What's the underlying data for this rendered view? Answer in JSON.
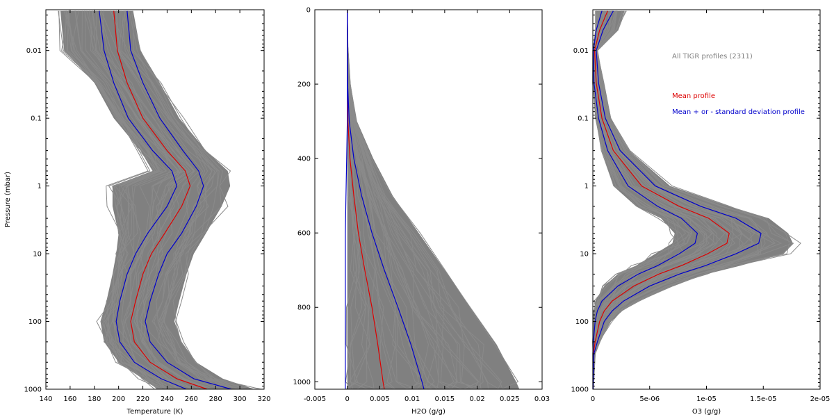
{
  "chart_data": [
    {
      "type": "line",
      "panel": "temperature",
      "xlabel": "Temperature (K)",
      "ylabel": "Pressure (mbar)",
      "xlim": [
        140,
        320
      ],
      "ylim": [
        1000,
        0.0025
      ],
      "yscale": "log",
      "x_ticks": [
        140,
        160,
        180,
        200,
        220,
        240,
        260,
        280,
        300,
        320
      ],
      "x_tick_labels": [
        "140",
        "160",
        "180",
        "200",
        "220",
        "240",
        "260",
        "280",
        "300",
        "320"
      ],
      "y_ticks": [
        0.01,
        0.1,
        1,
        10,
        100,
        1000
      ],
      "y_tick_labels": [
        "0.01",
        "0.1",
        "1",
        "10",
        "100",
        "1000"
      ],
      "pressure": [
        0.0026,
        0.01,
        0.03,
        0.1,
        0.3,
        0.6,
        1,
        2,
        5,
        10,
        20,
        50,
        100,
        200,
        400,
        700,
        1000
      ],
      "series": [
        {
          "role": "mean",
          "color": "#dd0000",
          "values": [
            196,
            199,
            207,
            220,
            240,
            255,
            259,
            252,
            238,
            227,
            220,
            214,
            210,
            213,
            226,
            248,
            273
          ]
        },
        {
          "role": "mean_plus_std",
          "color": "#0000cc",
          "values": [
            207,
            210,
            220,
            234,
            253,
            266,
            270,
            264,
            252,
            240,
            233,
            226,
            222,
            226,
            240,
            262,
            293
          ]
        },
        {
          "role": "mean_minus_std",
          "color": "#0000cc",
          "values": [
            184,
            188,
            196,
            208,
            228,
            244,
            248,
            240,
            224,
            214,
            207,
            201,
            198,
            201,
            213,
            235,
            256
          ]
        }
      ],
      "envelope": {
        "role": "all_profiles",
        "color": "#808080",
        "low": [
          152,
          155,
          180,
          196,
          218,
          228,
          195,
          195,
          200,
          198,
          195,
          190,
          185,
          188,
          200,
          220,
          232
        ],
        "high": [
          212,
          218,
          234,
          250,
          272,
          290,
          292,
          285,
          272,
          262,
          256,
          250,
          246,
          252,
          264,
          286,
          312
        ]
      }
    },
    {
      "type": "line",
      "panel": "h2o",
      "xlabel": "H2O (g/g)",
      "ylabel": "",
      "xlim": [
        -0.005,
        0.03
      ],
      "ylim": [
        1020,
        0
      ],
      "yscale": "linear",
      "x_ticks": [
        -0.005,
        0,
        0.005,
        0.01,
        0.015,
        0.02,
        0.025,
        0.03
      ],
      "x_tick_labels": [
        "-0.005",
        "0",
        "0.005",
        "0.01",
        "0.015",
        "0.02",
        "0.025",
        "0.03"
      ],
      "y_ticks": [
        0,
        200,
        400,
        600,
        800,
        1000
      ],
      "y_tick_labels": [
        "0",
        "200",
        "400",
        "600",
        "800",
        "1000"
      ],
      "pressure": [
        0,
        100,
        200,
        300,
        400,
        500,
        600,
        700,
        800,
        900,
        1000,
        1020
      ],
      "series": [
        {
          "role": "mean",
          "color": "#dd0000",
          "values": [
            0,
            0,
            2e-05,
            0.0001,
            0.0004,
            0.001,
            0.0017,
            0.0027,
            0.0038,
            0.0047,
            0.0055,
            0.0057
          ]
        },
        {
          "role": "mean_plus_std",
          "color": "#0000cc",
          "values": [
            0,
            0,
            5e-05,
            0.0003,
            0.001,
            0.0022,
            0.0038,
            0.0057,
            0.0078,
            0.0098,
            0.0115,
            0.0118
          ]
        },
        {
          "role": "mean_minus_std",
          "color": "#0000cc",
          "values": [
            0,
            0,
            0,
            0,
            -0.0001,
            -0.0002,
            -0.0003,
            -0.0003,
            -0.0003,
            -0.0003,
            -0.0003,
            -0.0003
          ]
        }
      ],
      "envelope": {
        "role": "all_profiles",
        "color": "#808080",
        "low": [
          0,
          0,
          0,
          0,
          0,
          0,
          0,
          0,
          0,
          0,
          0,
          0
        ],
        "high": [
          0,
          0.0001,
          0.0005,
          0.0015,
          0.004,
          0.007,
          0.011,
          0.015,
          0.019,
          0.023,
          0.026,
          0.0265
        ]
      }
    },
    {
      "type": "line",
      "panel": "o3",
      "xlabel": "O3 (g/g)",
      "ylabel": "",
      "xlim": [
        0,
        2e-05
      ],
      "ylim": [
        1000,
        0.0025
      ],
      "yscale": "log",
      "x_ticks": [
        0,
        5e-06,
        1e-05,
        1.5e-05,
        2e-05
      ],
      "x_tick_labels": [
        "0",
        "5e-06",
        "1e-05",
        "1.5e-05",
        "2e-05"
      ],
      "y_ticks": [
        0.01,
        0.1,
        1,
        10,
        100,
        1000
      ],
      "y_tick_labels": [
        "0.01",
        "0.1",
        "1",
        "10",
        "100",
        "1000"
      ],
      "pressure": [
        0.0026,
        0.005,
        0.01,
        0.03,
        0.1,
        0.3,
        1,
        2,
        3,
        5,
        7,
        10,
        15,
        20,
        30,
        50,
        70,
        100,
        200,
        300,
        1000
      ],
      "series": [
        {
          "role": "mean",
          "color": "#dd0000",
          "values": [
            1.3e-06,
            6e-07,
            1.5e-07,
            3e-07,
            8e-07,
            1.8e-06,
            4.3e-06,
            7.6e-06,
            1.02e-05,
            1.2e-05,
            1.18e-05,
            1.01e-05,
            7.8e-06,
            5.8e-06,
            3.6e-06,
            1.7e-06,
            1e-06,
            6e-07,
            2e-07,
            5e-08,
            1e-08
          ]
        },
        {
          "role": "mean_plus_std",
          "color": "#0000cc",
          "values": [
            1.8e-06,
            9e-07,
            3e-07,
            5e-07,
            1.1e-06,
            2.4e-06,
            5.5e-06,
            9.5e-06,
            1.26e-05,
            1.48e-05,
            1.46e-05,
            1.26e-05,
            9.9e-06,
            7.6e-06,
            5e-06,
            2.7e-06,
            1.7e-06,
            1e-06,
            4e-07,
            1e-07,
            2e-08
          ]
        },
        {
          "role": "mean_minus_std",
          "color": "#0000cc",
          "values": [
            8e-07,
            3e-07,
            5e-08,
            1e-07,
            5e-07,
            1.3e-06,
            3.1e-06,
            5.7e-06,
            7.8e-06,
            9.2e-06,
            9e-06,
            7.6e-06,
            5.7e-06,
            4e-06,
            2.2e-06,
            8e-07,
            4e-07,
            2e-07,
            5e-08,
            1e-08,
            0
          ]
        }
      ],
      "envelope": {
        "role": "all_profiles",
        "color": "#808080",
        "low": [
          2e-07,
          2e-07,
          0,
          0,
          2e-07,
          8e-07,
          1.8e-06,
          3.8e-06,
          6e-06,
          7.2e-06,
          7e-06,
          5.5e-06,
          3.8e-06,
          2.2e-06,
          1e-06,
          2e-07,
          1e-07,
          0,
          0,
          0,
          0
        ],
        "high": [
          2.8e-06,
          2.2e-06,
          4e-07,
          1e-06,
          1.6e-06,
          3.2e-06,
          6.8e-06,
          1.2e-05,
          1.55e-05,
          1.72e-05,
          1.76e-05,
          1.68e-05,
          1.3e-05,
          1e-05,
          7e-06,
          4e-06,
          2.6e-06,
          1.6e-06,
          6e-07,
          2e-07,
          5e-08
        ]
      }
    }
  ],
  "legend": {
    "placement": "top-right of third panel",
    "entries": [
      {
        "label": "All TIGR profiles (2311)",
        "color": "#808080"
      },
      {
        "label": "Mean profile",
        "color": "#dd0000"
      },
      {
        "label": "Mean + or - standard deviation profile",
        "color": "#0000cc"
      }
    ]
  }
}
